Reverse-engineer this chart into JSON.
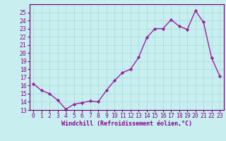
{
  "x": [
    0,
    1,
    2,
    3,
    4,
    5,
    6,
    7,
    8,
    9,
    10,
    11,
    12,
    13,
    14,
    15,
    16,
    17,
    18,
    19,
    20,
    21,
    22,
    23
  ],
  "y": [
    16.2,
    15.4,
    15.0,
    14.2,
    13.1,
    13.7,
    13.9,
    14.1,
    14.0,
    15.4,
    16.6,
    17.6,
    18.0,
    19.5,
    21.9,
    23.0,
    23.0,
    24.1,
    23.3,
    22.9,
    25.2,
    23.8,
    19.4,
    17.2
  ],
  "line_color": "#992299",
  "marker": "D",
  "marker_size": 2.2,
  "line_width": 1.0,
  "background_color": "#c8eef0",
  "grid_color": "#aadddd",
  "xlabel": "Windchill (Refroidissement éolien,°C)",
  "xlabel_fontsize": 6.0,
  "tick_fontsize": 5.8,
  "ylim": [
    13,
    26
  ],
  "xlim": [
    -0.5,
    23.5
  ],
  "yticks": [
    13,
    14,
    15,
    16,
    17,
    18,
    19,
    20,
    21,
    22,
    23,
    24,
    25
  ],
  "xticks": [
    0,
    1,
    2,
    3,
    4,
    5,
    6,
    7,
    8,
    9,
    10,
    11,
    12,
    13,
    14,
    15,
    16,
    17,
    18,
    19,
    20,
    21,
    22,
    23
  ],
  "spine_color": "#660066",
  "text_color": "#880088"
}
